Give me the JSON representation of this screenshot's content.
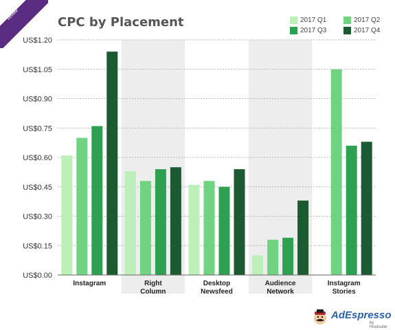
{
  "badge": {
    "year": "2017",
    "label": "Review"
  },
  "chart_data": {
    "type": "bar",
    "title": "CPC by Placement",
    "categories": [
      "Instagram",
      "Right\nColumn",
      "Desktop\nNewsfeed",
      "Audience\nNetwork",
      "Instagram\nStories"
    ],
    "series": [
      {
        "name": "2017 Q1",
        "color": "#bdf0b8",
        "values": [
          0.61,
          0.53,
          0.46,
          0.1,
          null
        ]
      },
      {
        "name": "2017 Q2",
        "color": "#6fd381",
        "values": [
          0.7,
          0.48,
          0.48,
          0.18,
          1.05
        ]
      },
      {
        "name": "2017 Q3",
        "color": "#2ea052",
        "values": [
          0.76,
          0.54,
          0.45,
          0.19,
          0.66
        ]
      },
      {
        "name": "2017 Q4",
        "color": "#1c5a31",
        "values": [
          1.14,
          0.55,
          0.54,
          0.38,
          0.68
        ]
      }
    ],
    "yticks": [
      "US$0.00",
      "US$0.15",
      "US$0.30",
      "US$0.45",
      "US$0.60",
      "US$0.75",
      "US$0.90",
      "US$1.05",
      "US$1.20"
    ],
    "ylim": [
      0,
      1.2
    ],
    "grid": true,
    "legend_position": "top-right",
    "shaded_categories": [
      1,
      3
    ]
  },
  "logo": {
    "name": "AdEspresso",
    "by": "by Hootsuite"
  }
}
